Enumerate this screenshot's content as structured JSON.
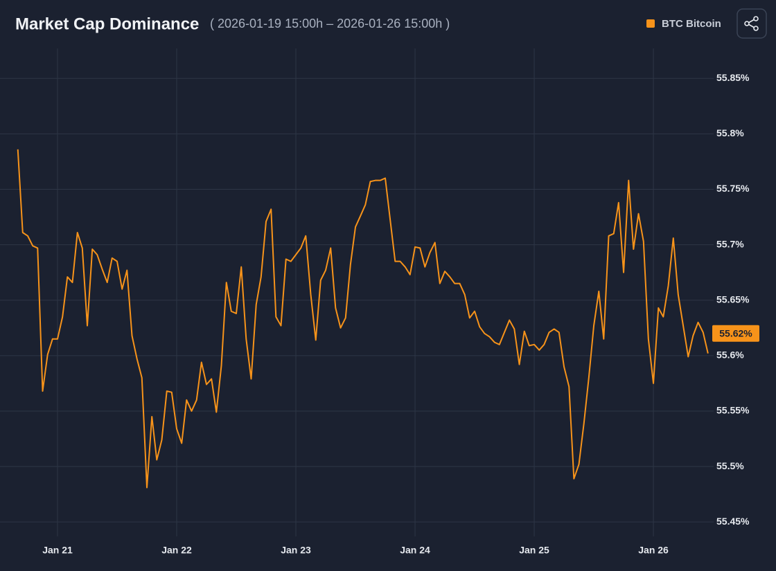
{
  "chart_data": {
    "type": "line",
    "title": "Market Cap Dominance",
    "subtitle": "( 2026-01-19 15:00h – 2026-01-26 15:00h )",
    "x": [
      20.667,
      20.708,
      20.75,
      20.792,
      20.833,
      20.875,
      20.917,
      20.958,
      21,
      21.042,
      21.083,
      21.125,
      21.167,
      21.208,
      21.25,
      21.292,
      21.333,
      21.375,
      21.417,
      21.458,
      21.5,
      21.542,
      21.583,
      21.625,
      21.667,
      21.708,
      21.75,
      21.792,
      21.833,
      21.875,
      21.917,
      21.958,
      22,
      22.042,
      22.083,
      22.125,
      22.167,
      22.208,
      22.25,
      22.292,
      22.333,
      22.375,
      22.417,
      22.458,
      22.5,
      22.542,
      22.583,
      22.625,
      22.667,
      22.708,
      22.75,
      22.792,
      22.833,
      22.875,
      22.917,
      22.958,
      23,
      23.042,
      23.083,
      23.125,
      23.167,
      23.208,
      23.25,
      23.292,
      23.333,
      23.375,
      23.417,
      23.458,
      23.5,
      23.542,
      23.583,
      23.625,
      23.667,
      23.708,
      23.75,
      23.792,
      23.833,
      23.875,
      23.917,
      23.958,
      24,
      24.042,
      24.083,
      24.125,
      24.167,
      24.208,
      24.25,
      24.292,
      24.333,
      24.375,
      24.417,
      24.458,
      24.5,
      24.542,
      24.583,
      24.625,
      24.667,
      24.708,
      24.75,
      24.792,
      24.833,
      24.875,
      24.917,
      24.958,
      25,
      25.042,
      25.083,
      25.125,
      25.167,
      25.208,
      25.25,
      25.292,
      25.333,
      25.375,
      25.417,
      25.458,
      25.5,
      25.542,
      25.583,
      25.625,
      25.667,
      25.708,
      25.75,
      25.792,
      25.833,
      25.875,
      25.917,
      25.958,
      26,
      26.042,
      26.083,
      26.125,
      26.167,
      26.208,
      26.25,
      26.292,
      26.333,
      26.375,
      26.417,
      26.458
    ],
    "series": [
      {
        "name": "BTC Bitcoin",
        "color": "#f7931a",
        "values": [
          55.786,
          55.711,
          55.708,
          55.699,
          55.697,
          55.568,
          55.601,
          55.615,
          55.615,
          55.635,
          55.671,
          55.666,
          55.711,
          55.697,
          55.627,
          55.696,
          55.691,
          55.678,
          55.666,
          55.688,
          55.685,
          55.66,
          55.677,
          55.618,
          55.597,
          55.58,
          55.481,
          55.545,
          55.506,
          55.524,
          55.568,
          55.567,
          55.534,
          55.521,
          55.56,
          55.55,
          55.56,
          55.594,
          55.574,
          55.579,
          55.549,
          55.591,
          55.666,
          55.64,
          55.638,
          55.68,
          55.615,
          55.579,
          55.646,
          55.671,
          55.721,
          55.732,
          55.635,
          55.627,
          55.687,
          55.685,
          55.691,
          55.697,
          55.708,
          55.655,
          55.614,
          55.668,
          55.677,
          55.697,
          55.643,
          55.625,
          55.634,
          55.682,
          55.716,
          55.726,
          55.736,
          55.757,
          55.758,
          55.758,
          55.76,
          55.722,
          55.685,
          55.685,
          55.68,
          55.673,
          55.698,
          55.697,
          55.68,
          55.693,
          55.702,
          55.665,
          55.676,
          55.671,
          55.665,
          55.665,
          55.655,
          55.634,
          55.64,
          55.626,
          55.62,
          55.617,
          55.612,
          55.61,
          55.621,
          55.632,
          55.624,
          55.592,
          55.622,
          55.609,
          55.61,
          55.605,
          55.61,
          55.621,
          55.624,
          55.621,
          55.59,
          55.572,
          55.489,
          55.502,
          55.539,
          55.58,
          55.627,
          55.658,
          55.615,
          55.708,
          55.71,
          55.738,
          55.675,
          55.758,
          55.696,
          55.728,
          55.703,
          55.615,
          55.575,
          55.643,
          55.635,
          55.663,
          55.706,
          55.655,
          55.627,
          55.599,
          55.618,
          55.63,
          55.621,
          55.602
        ]
      }
    ],
    "xlim": [
      20.657,
      26.459
    ],
    "ylim": [
      55.437,
      55.877
    ],
    "xticks": [
      {
        "value": 21,
        "label": "Jan 21"
      },
      {
        "value": 22,
        "label": "Jan 22"
      },
      {
        "value": 23,
        "label": "Jan 23"
      },
      {
        "value": 24,
        "label": "Jan 24"
      },
      {
        "value": 25,
        "label": "Jan 25"
      },
      {
        "value": 26,
        "label": "Jan 26"
      }
    ],
    "yticks": [
      {
        "value": 55.45,
        "label": "55.45%"
      },
      {
        "value": 55.5,
        "label": "55.5%"
      },
      {
        "value": 55.55,
        "label": "55.55%"
      },
      {
        "value": 55.6,
        "label": "55.6%"
      },
      {
        "value": 55.65,
        "label": "55.65%"
      },
      {
        "value": 55.7,
        "label": "55.7%"
      },
      {
        "value": 55.75,
        "label": "55.75%"
      },
      {
        "value": 55.8,
        "label": "55.8%"
      },
      {
        "value": 55.85,
        "label": "55.85%"
      }
    ],
    "grid": true,
    "legend": "top-right",
    "annotations": [
      {
        "text": "55.62%",
        "value": 55.62
      }
    ]
  }
}
